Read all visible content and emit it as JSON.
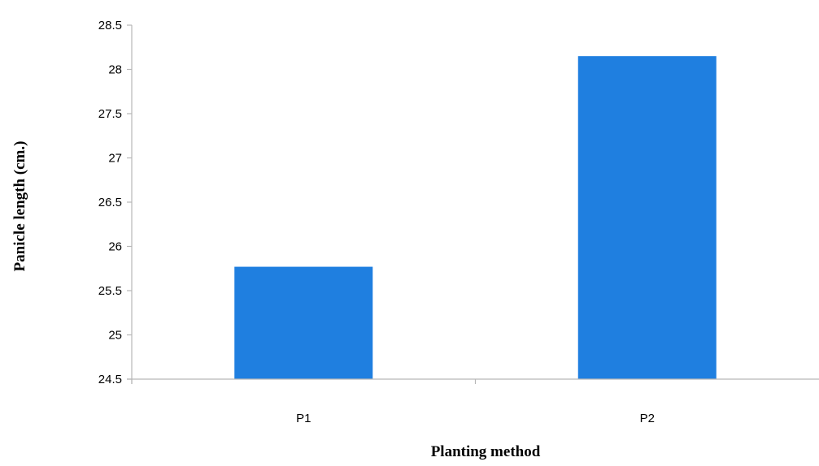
{
  "chart_data": {
    "type": "bar",
    "title": "",
    "xlabel": "Planting method",
    "ylabel": "Panicle length (cm.)",
    "categories": [
      "P1",
      "P2"
    ],
    "values": [
      25.77,
      28.15
    ],
    "ylim": [
      24.5,
      28.5
    ],
    "yticks": [
      "24.5",
      "25",
      "25.5",
      "26",
      "26.5",
      "27",
      "27.5",
      "28",
      "28.5"
    ],
    "grid": false,
    "legend": "none",
    "colors": {
      "bar": "#1f7fe0",
      "axis": "#b7b7b7",
      "text": "#000000"
    }
  }
}
